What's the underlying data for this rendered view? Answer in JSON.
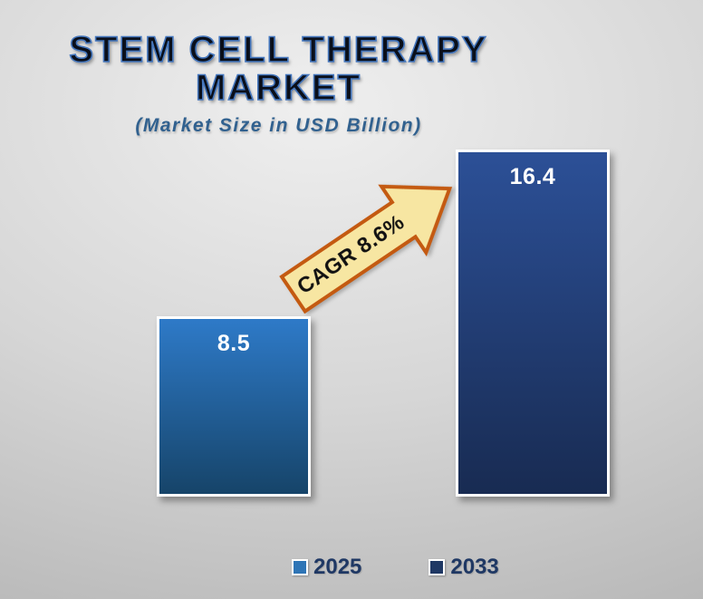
{
  "title": {
    "line1": "STEM CELL THERAPY",
    "line2": "MARKET",
    "subtitle": "(Market Size in USD Billion)"
  },
  "annotation": {
    "cagr_label": "CAGR 8.6%"
  },
  "bars": [
    {
      "category": "2025",
      "value_label": "8.5"
    },
    {
      "category": "2033",
      "value_label": "16.4"
    }
  ],
  "legend": [
    {
      "label": "2025"
    },
    {
      "label": "2033"
    }
  ],
  "chart_data": {
    "type": "bar",
    "title": "STEM CELL THERAPY MARKET",
    "subtitle": "(Market Size in USD Billion)",
    "categories": [
      "2025",
      "2033"
    ],
    "values": [
      8.5,
      16.4
    ],
    "unit": "USD Billion",
    "ylim": [
      0,
      16.4
    ],
    "grid": false,
    "axes_visible": false,
    "data_labels": [
      "8.5",
      "16.4"
    ],
    "annotations": [
      "CAGR 8.6%"
    ],
    "legend_position": "bottom",
    "series_colors": [
      "#2E75B6",
      "#1F3864"
    ]
  },
  "colors": {
    "bg-center": "#EFEFEF",
    "bg-edge": "#B7B7B7",
    "title-fill": "#0A0F1A",
    "title-stroke": "#4577BE",
    "subtitle": "#31618F",
    "bar1-top": "#2E7AC8",
    "bar1-bottom": "#164469",
    "bar2-top": "#2C5097",
    "bar2-bottom": "#182B52",
    "bar-border": "#FFFFFF",
    "value-label": "#FFFFFF",
    "arrow-fill": "#F7E6A2",
    "arrow-stroke": "#C45A11",
    "arrow-text": "#111111",
    "legend-text": "#1F3864",
    "legend1": "#2E75B6",
    "legend2": "#1F3864"
  }
}
